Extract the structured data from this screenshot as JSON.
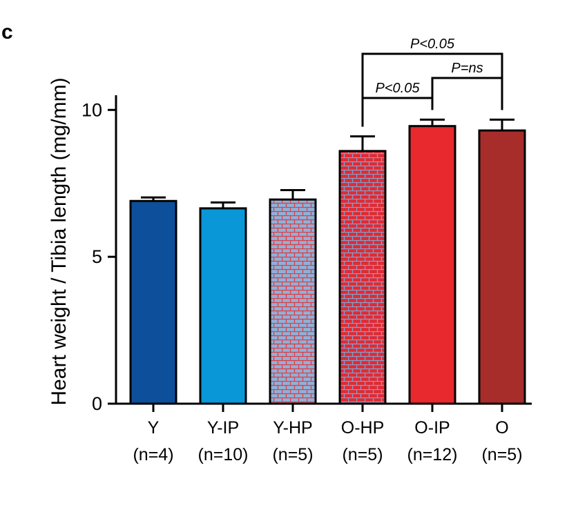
{
  "panel_label": "c",
  "chart_data": {
    "type": "bar",
    "ylabel": "Heart weight / Tibia length (mg/mm)",
    "ylim": [
      0,
      10.5
    ],
    "yticks": [
      0,
      5,
      10
    ],
    "categories": [
      {
        "name": "Y",
        "n": "(n=4)",
        "value": 6.9,
        "error": 0.12,
        "fill": "#0d4f9a",
        "pattern": false
      },
      {
        "name": "Y-IP",
        "n": "(n=10)",
        "value": 6.65,
        "error": 0.2,
        "fill": "#0a97d8",
        "pattern": false
      },
      {
        "name": "Y-HP",
        "n": "(n=5)",
        "value": 6.95,
        "error": 0.32,
        "fill": "#8fb0d8",
        "pattern": true,
        "pattern_color": "#e23a3f"
      },
      {
        "name": "O-HP",
        "n": "(n=5)",
        "value": 8.6,
        "error": 0.5,
        "fill": "#e12b33",
        "pattern": true,
        "pattern_color": "#7fa3d3"
      },
      {
        "name": "O-IP",
        "n": "(n=12)",
        "value": 9.45,
        "error": 0.22,
        "fill": "#e8292d",
        "pattern": false
      },
      {
        "name": "O",
        "n": "(n=5)",
        "value": 9.3,
        "error": 0.37,
        "fill": "#a72d2b",
        "pattern": false
      }
    ],
    "significance": [
      {
        "from": 3,
        "to": 5,
        "label": "P<0.05",
        "level": 2
      },
      {
        "from": 4,
        "to": 5,
        "label": "P=ns",
        "level": 1
      },
      {
        "from": 3,
        "to": 4,
        "label": "P<0.05",
        "level": 0
      }
    ]
  }
}
